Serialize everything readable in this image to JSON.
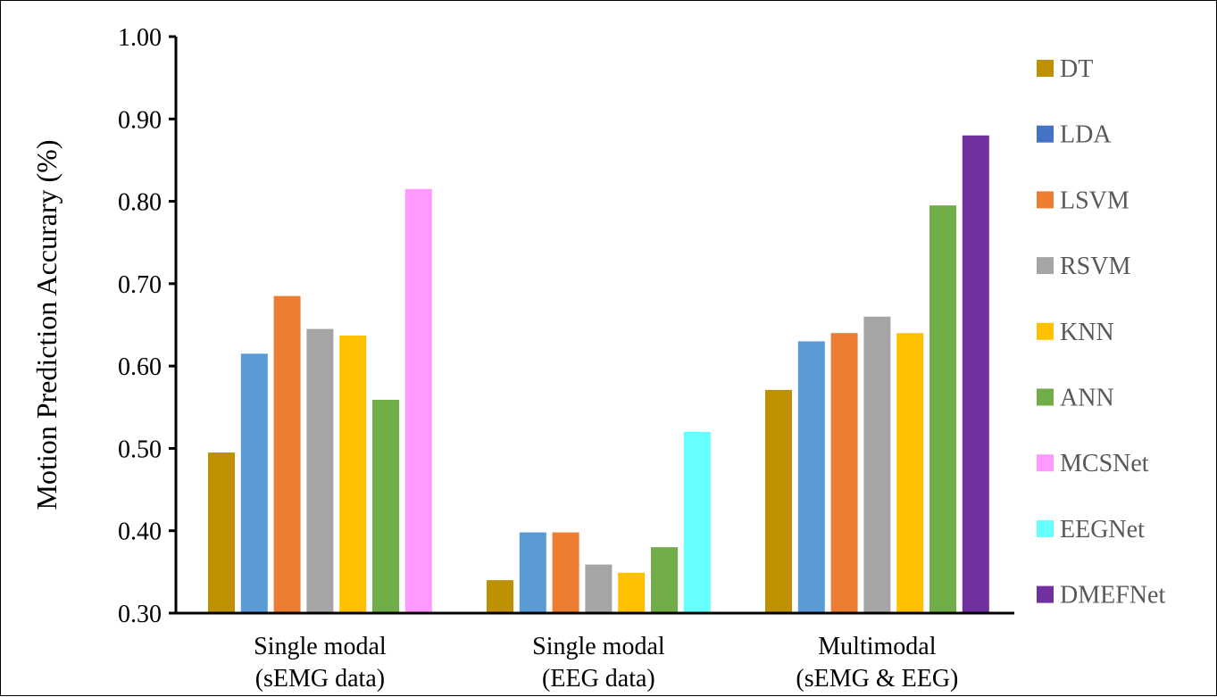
{
  "chart_data": {
    "type": "bar",
    "ylabel": "Motion Prediction Accurary (%)",
    "xlabel": "",
    "ylim": [
      0.3,
      1.0
    ],
    "yticks": [
      "0.30",
      "0.40",
      "0.50",
      "0.60",
      "0.70",
      "0.80",
      "0.90",
      "1.00"
    ],
    "grid": false,
    "legend_position": "right",
    "categories": [
      [
        "Single modal",
        "(sEMG data)"
      ],
      [
        "Single modal",
        "(EEG data)"
      ],
      [
        "Multimodal",
        "(sEMG & EEG)"
      ]
    ],
    "series": [
      {
        "name": "DT",
        "color": "#BF9000",
        "values": [
          0.495,
          0.34,
          0.571
        ]
      },
      {
        "name": "LDA",
        "color": "#5B9BD5",
        "legend_color": "#4472C4",
        "values": [
          0.615,
          0.398,
          0.63
        ]
      },
      {
        "name": "LSVM",
        "color": "#ED7D31",
        "values": [
          0.685,
          0.398,
          0.64
        ]
      },
      {
        "name": "RSVM",
        "color": "#A5A5A5",
        "values": [
          0.645,
          0.359,
          0.66
        ]
      },
      {
        "name": "KNN",
        "color": "#FFC000",
        "values": [
          0.637,
          0.349,
          0.64
        ]
      },
      {
        "name": "ANN",
        "color": "#70AD47",
        "values": [
          0.559,
          0.38,
          0.795
        ]
      },
      {
        "name": "MCSNet",
        "color": "#FF99FF",
        "values": [
          0.815,
          null,
          null
        ]
      },
      {
        "name": "EEGNet",
        "color": "#66FFFF",
        "values": [
          null,
          0.52,
          null
        ]
      },
      {
        "name": "DMEFNet",
        "color": "#7030A0",
        "values": [
          null,
          null,
          0.88
        ]
      }
    ]
  }
}
